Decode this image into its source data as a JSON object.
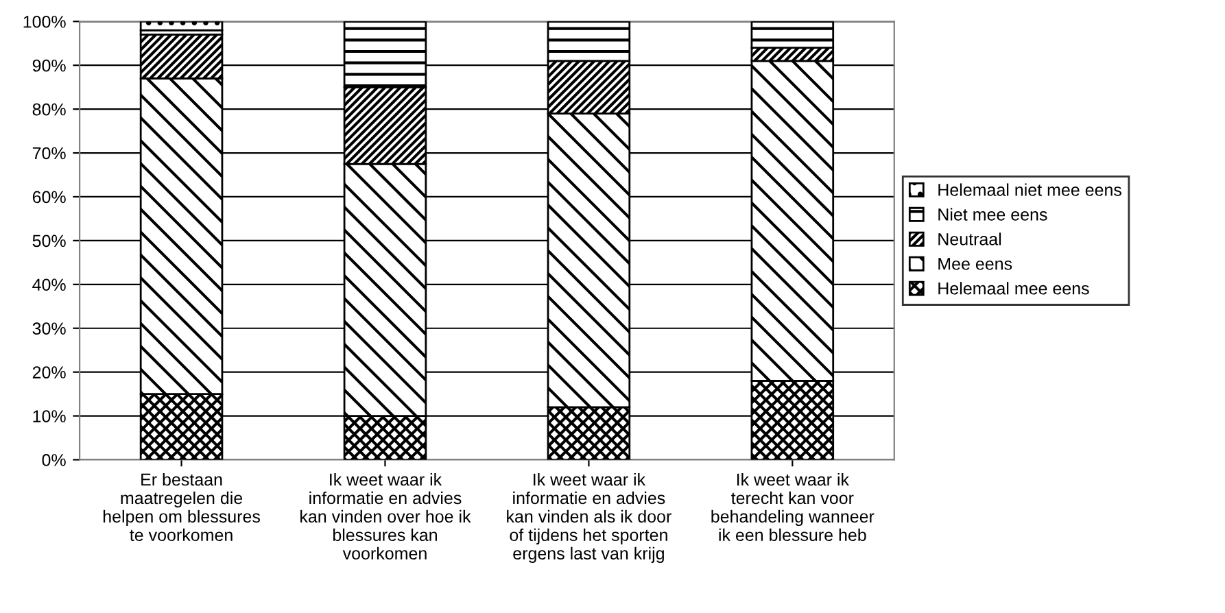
{
  "chart_data": {
    "type": "bar",
    "stacked": true,
    "categories": [
      "Er bestaan\nmaatregelen die\nhelpen om blessures\nte voorkomen",
      "Ik weet waar ik\ninformatie en advies\nkan vinden over hoe ik\nblessures kan\nvoorkomen",
      "Ik weet waar ik\ninformatie en advies\nkan vinden als ik door\nof tijdens het sporten\nergens last van krijg",
      "Ik weet waar ik\nterecht kan voor\nbehandeling wanneer\nik een blessure heb"
    ],
    "series": [
      {
        "name": "Helemaal mee eens",
        "color": "#000000",
        "values": [
          15,
          10,
          12,
          18
        ]
      },
      {
        "name": "Mee eens",
        "color": "#000000",
        "values": [
          72,
          57.5,
          67,
          73
        ]
      },
      {
        "name": "Neutraal",
        "color": "#000000",
        "values": [
          10,
          17.5,
          12,
          3
        ]
      },
      {
        "name": "Niet mee eens",
        "color": "#000000",
        "values": [
          1,
          15,
          9,
          6
        ]
      },
      {
        "name": "Helemaal niet mee eens",
        "color": "#000000",
        "values": [
          2,
          0,
          0,
          0
        ]
      }
    ],
    "ylim": [
      0,
      100
    ],
    "yticks": [
      {
        "value": 0,
        "label": "0%"
      },
      {
        "value": 10,
        "label": "10%"
      },
      {
        "value": 20,
        "label": "20%"
      },
      {
        "value": 30,
        "label": "30%"
      },
      {
        "value": 40,
        "label": "40%"
      },
      {
        "value": 50,
        "label": "50%"
      },
      {
        "value": 60,
        "label": "60%"
      },
      {
        "value": 70,
        "label": "70%"
      },
      {
        "value": 80,
        "label": "80%"
      },
      {
        "value": 90,
        "label": "90%"
      },
      {
        "value": 100,
        "label": "100%"
      }
    ],
    "grid": "y",
    "legend": "right"
  }
}
